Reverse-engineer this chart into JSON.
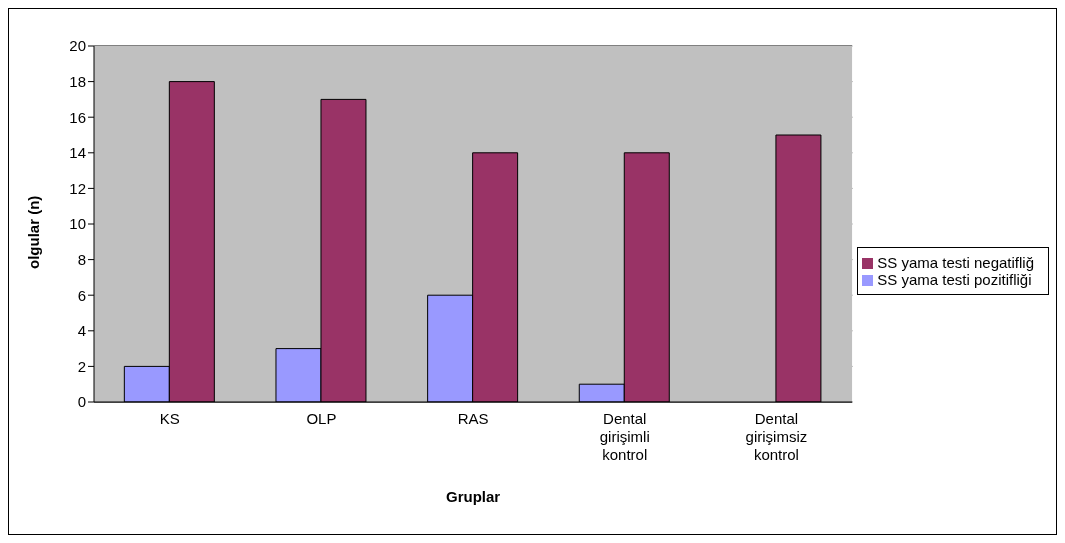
{
  "chart_data": {
    "type": "bar",
    "xlabel": "Gruplar",
    "ylabel": "olgular (n)",
    "categories": [
      "KS",
      "OLP",
      "RAS",
      "Dental girişimli kontrol",
      "Dental girişimsiz kontrol"
    ],
    "series": [
      {
        "name": "SS yama testi pozitifliği",
        "color": "#9999ff",
        "values": [
          2,
          3,
          6,
          1,
          0
        ]
      },
      {
        "name": "SS yama testi negatifliğ",
        "color": "#993366",
        "values": [
          18,
          17,
          14,
          14,
          15
        ]
      }
    ],
    "ylim": [
      0,
      20
    ],
    "yticks": [
      0,
      2,
      4,
      6,
      8,
      10,
      12,
      14,
      16,
      18,
      20
    ],
    "grid": "y",
    "legend": "right"
  }
}
